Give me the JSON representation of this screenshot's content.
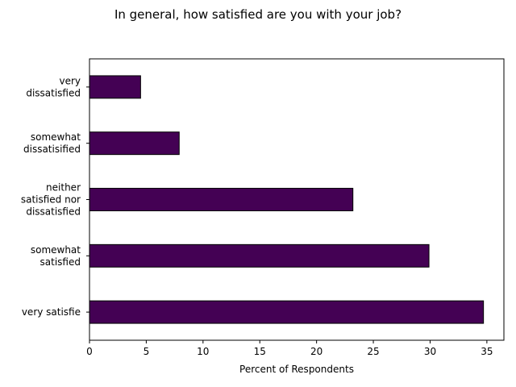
{
  "chart_data": {
    "type": "bar",
    "orientation": "horizontal",
    "title": "In general, how satisfied are you with your job?",
    "xlabel": "Percent of Respondents",
    "ylabel": "",
    "xlim": [
      0,
      36.5
    ],
    "xticks": [
      0,
      5,
      10,
      15,
      20,
      25,
      30,
      35
    ],
    "categories": [
      [
        "very",
        "dissatisfied"
      ],
      [
        "somewhat",
        "dissatisified"
      ],
      [
        "neither",
        "satisfied nor",
        "dissatisfied"
      ],
      [
        "somewhat",
        "satisfied"
      ],
      [
        "very satisfie"
      ]
    ],
    "values": [
      4.5,
      7.9,
      23.2,
      29.9,
      34.7
    ],
    "bar_color": "#440154",
    "edge_color": "#000000",
    "grid": false,
    "legend": "none"
  }
}
